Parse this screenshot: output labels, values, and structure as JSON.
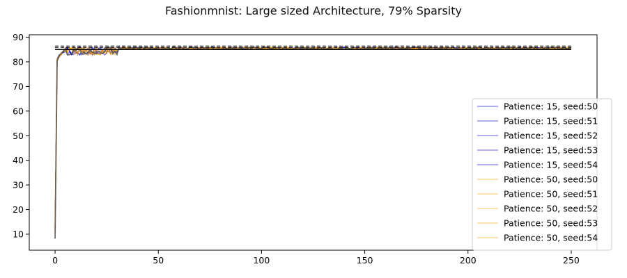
{
  "chart_data": {
    "type": "line",
    "title": "Fashionmnist: Large sized Architecture, 79% Sparsity",
    "xlabel": "",
    "ylabel": "",
    "xlim": [
      -12.5,
      262.5
    ],
    "ylim": [
      3.5,
      91
    ],
    "xticks": [
      0,
      50,
      100,
      150,
      200,
      250
    ],
    "yticks": [
      10,
      20,
      30,
      40,
      50,
      60,
      70,
      80,
      90
    ],
    "grid": false,
    "legend_position": "center-right",
    "colors": {
      "patience_15": "#0000cd",
      "patience_50": "#ffa500",
      "overlay": "#555555",
      "baseline_solid": "#000000",
      "baseline_dashed": "#000000"
    },
    "series": [
      {
        "name": "Patience: 15, seed:50",
        "group": "patience_15",
        "seed": 50
      },
      {
        "name": "Patience: 15, seed:51",
        "group": "patience_15",
        "seed": 51
      },
      {
        "name": "Patience: 15, seed:52",
        "group": "patience_15",
        "seed": 52
      },
      {
        "name": "Patience: 15, seed:53",
        "group": "patience_15",
        "seed": 53
      },
      {
        "name": "Patience: 15, seed:54",
        "group": "patience_15",
        "seed": 54
      },
      {
        "name": "Patience: 50, seed:50",
        "group": "patience_50",
        "seed": 50
      },
      {
        "name": "Patience: 50, seed:51",
        "group": "patience_50",
        "seed": 51
      },
      {
        "name": "Patience: 50, seed:52",
        "group": "patience_50",
        "seed": 52
      },
      {
        "name": "Patience: 50, seed:53",
        "group": "patience_50",
        "seed": 53
      },
      {
        "name": "Patience: 50, seed:54",
        "group": "patience_50",
        "seed": 54
      }
    ],
    "curve_shape": {
      "x_end": 250,
      "start_value": 7,
      "value_at_x1": 80,
      "early_noisy_until_x": 30,
      "early_range": [
        81,
        86
      ],
      "plateau": 85.5
    },
    "reference_lines": [
      {
        "style": "solid",
        "y": 85.0,
        "x": [
          0,
          250
        ]
      },
      {
        "style": "dashed",
        "y": 85.8,
        "x": [
          0,
          250
        ]
      },
      {
        "style": "dashed",
        "y": 86.4,
        "x": [
          0,
          250
        ]
      }
    ]
  }
}
